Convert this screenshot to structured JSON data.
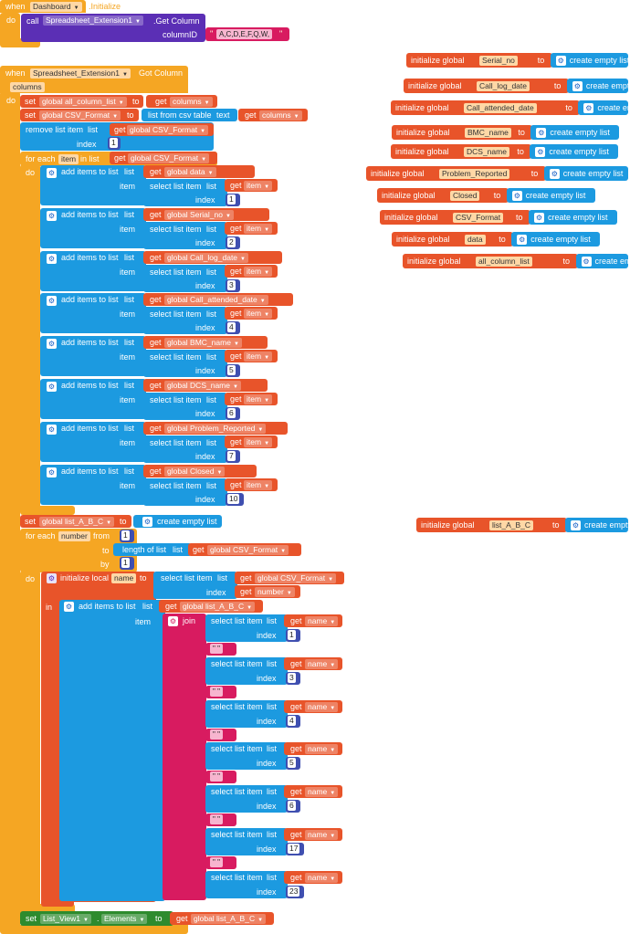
{
  "colors": {
    "event": "#f5a623",
    "procedure": "#5b2fb5",
    "list": "#1c9ae0",
    "variable": "#e8542a",
    "math": "#3f4fb0",
    "text": "#d81b60",
    "component": "#2e8b2e"
  },
  "kw": {
    "when": "when",
    "do": "do",
    "call": "call",
    "set": "set",
    "to": "to",
    "get": "get",
    "index": "index",
    "item": "item",
    "list": "list",
    "text": "text",
    "in_list": "in list",
    "for_each": "for each",
    "from": "from",
    "by": "by",
    "in": "in",
    "join": "join",
    "initialize_global": "initialize global",
    "initialize_local": "initialize local",
    "create_empty_list": "create empty list",
    "add_items_to_list": "add items to list",
    "select_list_item": "select list item",
    "remove_list_item": "remove list item",
    "list_from_csv_table": "list from csv table",
    "length_of_list": "length of list"
  },
  "ev1": {
    "component": "Dashboard",
    "event": ".Initialize",
    "call_target": "Spreadsheet_Extension1",
    "method": ".Get Column",
    "param": "columnID",
    "param_value": "A,C,D,E,F,Q,W,"
  },
  "ev2": {
    "component": "Spreadsheet_Extension1",
    "event": "Got Column",
    "param": "columns"
  },
  "vars": {
    "all_column_list": "global all_column_list",
    "csv_format": "global CSV_Format",
    "data": "global data",
    "serial_no": "global Serial_no",
    "call_log_date": "global Call_log_date",
    "call_attended_date": "global Call_attended_date",
    "bmc_name": "global BMC_name",
    "dcs_name": "global DCS_name",
    "problem_reported": "global Problem_Reported",
    "closed": "global Closed",
    "list_abc": "global list_A_B_C",
    "columns": "columns",
    "item": "item",
    "number": "number",
    "name": "name"
  },
  "globals": [
    "Serial_no",
    "Call_log_date",
    "Call_attended_date",
    "BMC_name",
    "DCS_name",
    "Problem_Reported",
    "Closed",
    "CSV_Format",
    "data",
    "all_column_list",
    "list_A_B_C"
  ],
  "nums": {
    "n1": "1",
    "n2": "2",
    "n3": "3",
    "n4": "4",
    "n5": "5",
    "n6": "6",
    "n7": "7",
    "n10": "10",
    "n17": "17",
    "n23": "23"
  },
  "quotes": {
    "q1": "\" \"",
    "q2": "\" \"",
    "q3": "\"  \"",
    "q4": "\"  \"",
    "q5": "\"  \"",
    "q6": "\"  \""
  },
  "listview": {
    "component": "List_View1",
    "property": "Elements"
  }
}
